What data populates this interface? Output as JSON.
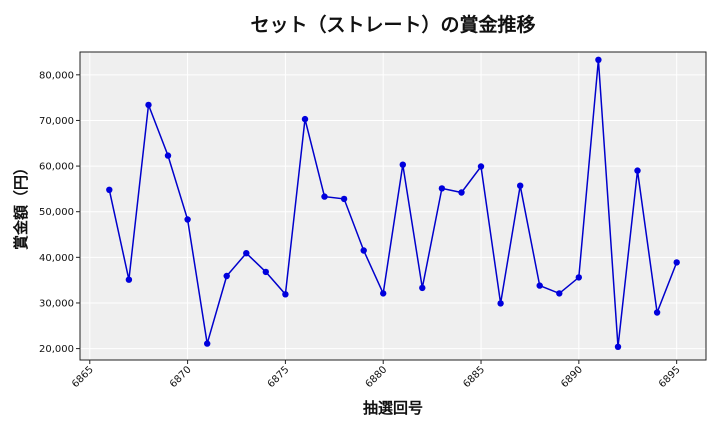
{
  "chart_data": {
    "type": "line",
    "title": "セット（ストレート）の賞金推移",
    "xlabel": "抽選回号",
    "ylabel": "賞金額（円）",
    "xlim": [
      6864.5,
      6896.5
    ],
    "ylim": [
      17500,
      85000
    ],
    "x_ticks": [
      6865,
      6870,
      6875,
      6880,
      6885,
      6890,
      6895
    ],
    "x_tick_labels": [
      "6865",
      "6870",
      "6875",
      "6880",
      "6885",
      "6890",
      "6895"
    ],
    "y_ticks": [
      20000,
      30000,
      40000,
      50000,
      60000,
      70000,
      80000
    ],
    "y_tick_labels": [
      "20,000",
      "30,000",
      "40,000",
      "50,000",
      "60,000",
      "70,000",
      "80,000"
    ],
    "grid": true,
    "line_color": "#0000cc",
    "marker_color": "#0000dd",
    "plot_background": "#efefef",
    "series": [
      {
        "x": [
          6866,
          6867,
          6868,
          6869,
          6870,
          6871,
          6872,
          6873,
          6874,
          6875,
          6876,
          6877,
          6878,
          6879,
          6880,
          6881,
          6882,
          6883,
          6884,
          6885,
          6886,
          6887,
          6888,
          6889,
          6890,
          6891,
          6892,
          6893,
          6894,
          6895
        ],
        "values": [
          54800,
          35100,
          73400,
          62300,
          48300,
          21100,
          35900,
          40900,
          36800,
          31900,
          70300,
          53300,
          52800,
          41500,
          32100,
          60300,
          33300,
          55100,
          54200,
          59900,
          29900,
          55700,
          33800,
          32100,
          35600,
          83300,
          20400,
          59000,
          27900,
          38900
        ]
      }
    ]
  }
}
